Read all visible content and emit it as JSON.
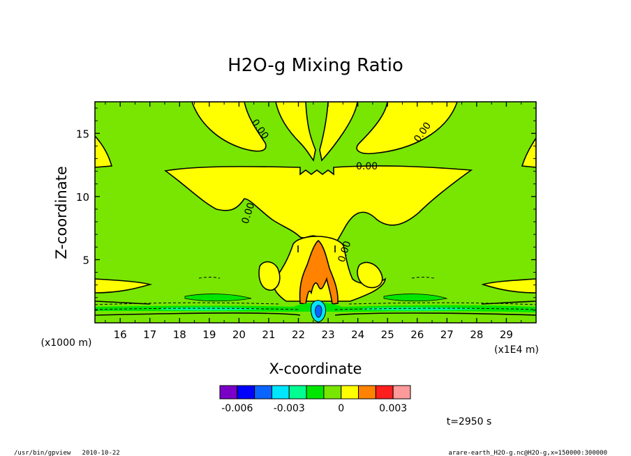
{
  "chart_data": {
    "type": "contour",
    "title": "H2O-g Mixing Ratio",
    "xlabel": "X-coordinate",
    "ylabel": "Z-coordinate",
    "x_unit_label": "(x1E4 m)",
    "y_unit_label": "(x1000 m)",
    "xlim": [
      15.15,
      30.0
    ],
    "ylim": [
      0.0,
      17.5
    ],
    "x_ticks": [
      16,
      17,
      18,
      19,
      20,
      21,
      22,
      23,
      24,
      25,
      26,
      27,
      28,
      29
    ],
    "x_tick_labels": [
      "16",
      "17",
      "18",
      "19",
      "20",
      "21",
      "22",
      "23",
      "24",
      "25",
      "26",
      "27",
      "28",
      "29"
    ],
    "y_ticks": [
      5,
      10,
      15
    ],
    "y_tick_labels": [
      "5",
      "10",
      "15"
    ],
    "contour_labels": [
      "0.00",
      "0.00",
      "0.00",
      "0.00",
      "0.00"
    ],
    "colorbar": {
      "colors": [
        "#7a00c8",
        "#0000ff",
        "#0a64ff",
        "#00e6ff",
        "#00ff90",
        "#00e600",
        "#78e600",
        "#ffff00",
        "#ff8200",
        "#ff1e1e",
        "#ff9a9a"
      ],
      "tick_labels": [
        "-0.006",
        "-0.003",
        "0",
        "0.003"
      ],
      "tick_positions": [
        1,
        4,
        7,
        10
      ]
    },
    "background_level_color": "#78e600",
    "positive_level_color": "#ffff00",
    "high_level_color": "#ff8200",
    "time_label": "t=2950 s"
  },
  "footer": {
    "left": "/usr/bin/gpview   2010-10-22",
    "right": "arare-earth_H2O-g.nc@H2O-g,x=150000:300000"
  }
}
